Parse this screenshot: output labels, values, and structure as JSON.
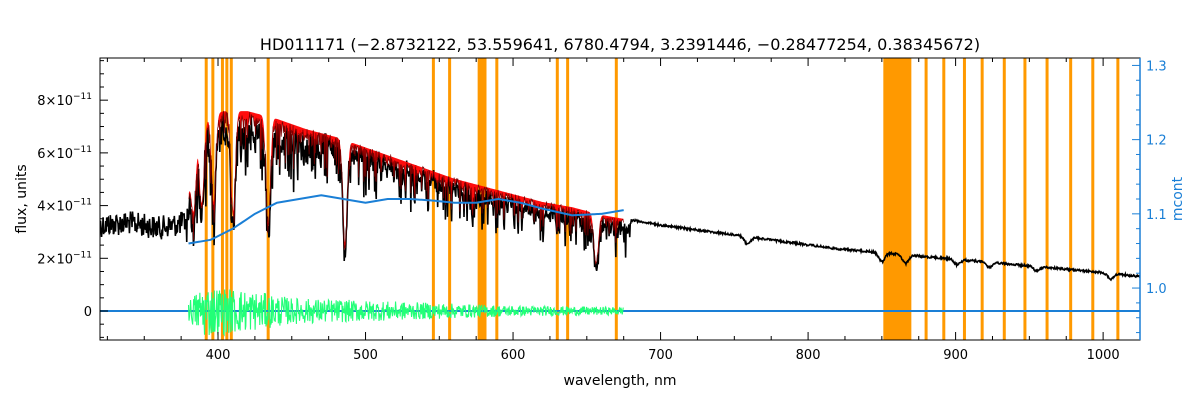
{
  "chart_data": {
    "type": "line",
    "title": "HD011171    (−2.8732122, 53.559641, 6780.4794, 3.2391446, −0.28477254, 0.38345672)",
    "xlabel": "wavelength, nm",
    "ylabel": "flux, units",
    "y2label": "mcont",
    "xlim": [
      320,
      1025
    ],
    "ylim": [
      -1.1e-11,
      9.6e-11
    ],
    "y2lim": [
      0.93,
      1.31
    ],
    "x_ticks": [
      400,
      500,
      600,
      700,
      800,
      900,
      1000
    ],
    "x_tick_labels": [
      "400",
      "500",
      "600",
      "700",
      "800",
      "900",
      "1000"
    ],
    "y_ticks": [
      0,
      2e-11,
      4e-11,
      6e-11,
      8e-11
    ],
    "y_tick_labels": [
      {
        "base": "0",
        "exp": ""
      },
      {
        "base": "2×10",
        "exp": "−11"
      },
      {
        "base": "4×10",
        "exp": "−11"
      },
      {
        "base": "6×10",
        "exp": "−11"
      },
      {
        "base": "8×10",
        "exp": "−11"
      }
    ],
    "y2_ticks": [
      1.0,
      1.1,
      1.2,
      1.3
    ],
    "y2_tick_labels": [
      "1.0",
      "1.1",
      "1.2",
      "1.3"
    ],
    "masked_lines": [
      392,
      396.5,
      403,
      406,
      409,
      434,
      546,
      557,
      589,
      630,
      637,
      670,
      880,
      892,
      906,
      918,
      933,
      947,
      962,
      978,
      993,
      1010
    ],
    "masked_bands": [
      [
        576,
        582
      ],
      [
        851,
        870
      ]
    ],
    "absorption_features": [
      {
        "x": 383.5,
        "depth": 0.35
      },
      {
        "x": 388.9,
        "depth": 0.4
      },
      {
        "x": 397.0,
        "depth": 0.45
      },
      {
        "x": 410.2,
        "depth": 0.5
      },
      {
        "x": 434.0,
        "depth": 0.55
      },
      {
        "x": 486.1,
        "depth": 0.6
      },
      {
        "x": 656.3,
        "depth": 0.5
      },
      {
        "x": 759.0,
        "depth": 0.1
      },
      {
        "x": 850.0,
        "depth": 0.15
      },
      {
        "x": 866.0,
        "depth": 0.15
      },
      {
        "x": 901.0,
        "depth": 0.1
      },
      {
        "x": 923.0,
        "depth": 0.1
      },
      {
        "x": 955.0,
        "depth": 0.1
      },
      {
        "x": 1005.0,
        "depth": 0.15
      }
    ],
    "series": [
      {
        "role": "observed",
        "color": "#000000",
        "envelope_x": [
          320,
          340,
          360,
          378,
          385,
          395,
          405,
          420,
          440,
          460,
          480,
          500,
          520,
          540,
          560,
          580,
          600,
          620,
          640,
          660,
          680,
          700,
          720,
          740,
          760,
          780,
          800,
          820,
          840,
          860,
          880,
          900,
          920,
          940,
          960,
          980,
          1000,
          1025
        ],
        "envelope_y": [
          3.7e-11,
          3.8e-11,
          3.6e-11,
          3.8e-11,
          6.5e-11,
          7.6e-11,
          7.7e-11,
          7.7e-11,
          7.4e-11,
          7e-11,
          6.7e-11,
          6.3e-11,
          5.9e-11,
          5.5e-11,
          5.1e-11,
          4.8e-11,
          4.5e-11,
          4.2e-11,
          4e-11,
          3.7e-11,
          3.5e-11,
          3.3e-11,
          3.15e-11,
          3e-11,
          2.85e-11,
          2.7e-11,
          2.55e-11,
          2.4e-11,
          2.3e-11,
          2.2e-11,
          2.1e-11,
          2e-11,
          1.9e-11,
          1.8e-11,
          1.7e-11,
          1.6e-11,
          1.5e-11,
          1.35e-11
        ]
      },
      {
        "role": "model",
        "color": "#ff0000",
        "x_range": [
          380,
          675
        ]
      },
      {
        "role": "continuum",
        "color": "#1a7fd6",
        "axis": "right",
        "x": [
          380,
          395,
          410,
          425,
          440,
          455,
          470,
          485,
          500,
          515,
          530,
          545,
          560,
          575,
          590,
          605,
          620,
          640,
          660,
          675
        ],
        "y": [
          1.06,
          1.065,
          1.08,
          1.1,
          1.115,
          1.12,
          1.125,
          1.12,
          1.115,
          1.12,
          1.12,
          1.118,
          1.115,
          1.115,
          1.12,
          1.115,
          1.107,
          1.098,
          1.1,
          1.105
        ]
      },
      {
        "role": "residual",
        "color": "#22ff77",
        "x_range": [
          380,
          675
        ],
        "center": 0,
        "amplitude": [
          {
            "x": 380,
            "a": 4e-12
          },
          {
            "x": 390,
            "a": 1e-11
          },
          {
            "x": 420,
            "a": 8e-12
          },
          {
            "x": 450,
            "a": 5e-12
          },
          {
            "x": 500,
            "a": 4e-12
          },
          {
            "x": 550,
            "a": 3e-12
          },
          {
            "x": 600,
            "a": 2e-12
          },
          {
            "x": 675,
            "a": 1.5e-12
          }
        ]
      },
      {
        "role": "zero-line",
        "color": "#1a7fd6",
        "y": 0
      }
    ]
  }
}
